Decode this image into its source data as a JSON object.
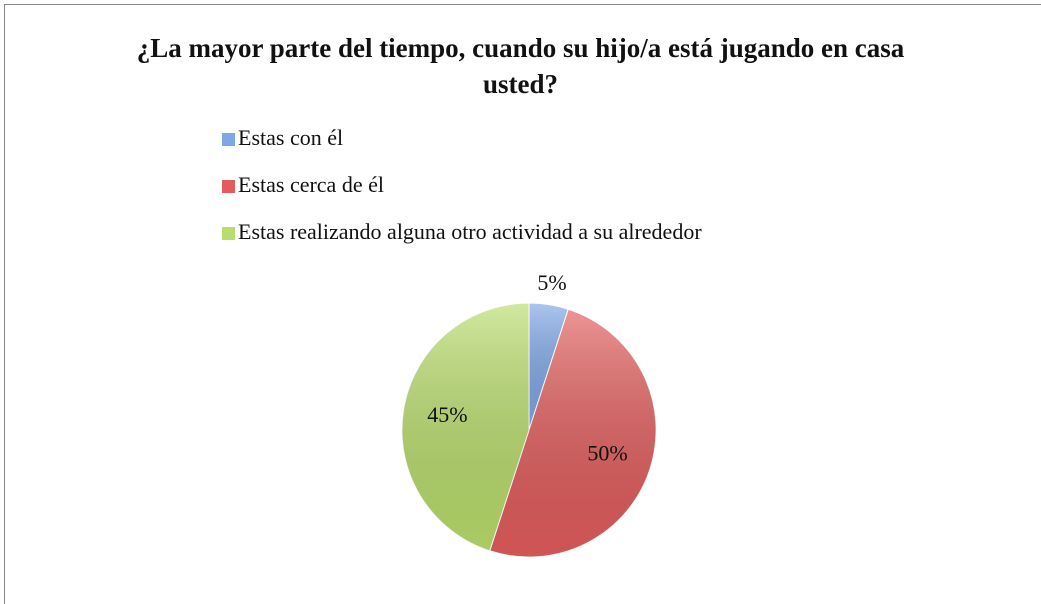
{
  "chart_data": {
    "type": "pie",
    "title": "¿La mayor parte del tiempo, cuando su hijo/a está jugando en casa usted?",
    "categories": [
      "Estas con él",
      "Estas cerca de él",
      "Estas realizando alguna otro actividad a su alrededor"
    ],
    "values": [
      5,
      50,
      45
    ],
    "value_labels": [
      "5%",
      "50%",
      "45%"
    ],
    "colors": [
      "#7fa7e6",
      "#e25c5c",
      "#b9dd6c"
    ],
    "legend": "top"
  }
}
